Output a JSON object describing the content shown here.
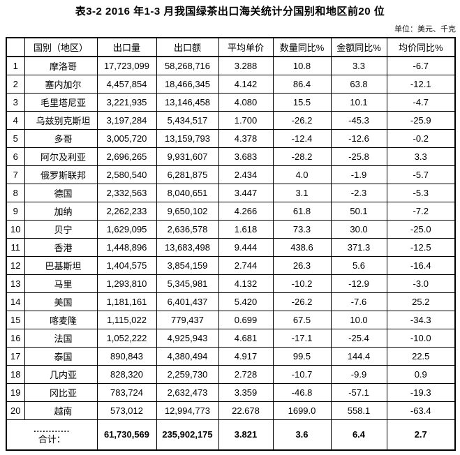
{
  "page": {
    "title": "表3-2 2016 年1-3 月我国绿茶出口海关统计分国别和地区前20 位",
    "unit_note": "单位：美元、千克"
  },
  "table": {
    "headers": {
      "rank": "",
      "country": "国别（地区）",
      "volume": "出口量",
      "value": "出口额",
      "price": "平均单价",
      "volume_yoy": "数量同比%",
      "value_yoy": "金额同比%",
      "price_yoy": "均价同比%"
    },
    "rows": [
      {
        "rank": "1",
        "country": "摩洛哥",
        "volume": "17,723,099",
        "value": "58,268,716",
        "price": "3.288",
        "volume_yoy": "10.8",
        "value_yoy": "3.3",
        "price_yoy": "-6.7"
      },
      {
        "rank": "2",
        "country": "塞内加尔",
        "volume": "4,457,854",
        "value": "18,466,345",
        "price": "4.142",
        "volume_yoy": "86.4",
        "value_yoy": "63.8",
        "price_yoy": "-12.1"
      },
      {
        "rank": "3",
        "country": "毛里塔尼亚",
        "volume": "3,221,935",
        "value": "13,146,458",
        "price": "4.080",
        "volume_yoy": "15.5",
        "value_yoy": "10.1",
        "price_yoy": "-4.7"
      },
      {
        "rank": "4",
        "country": "乌兹别克斯坦",
        "volume": "3,197,284",
        "value": "5,434,517",
        "price": "1.700",
        "volume_yoy": "-26.2",
        "value_yoy": "-45.3",
        "price_yoy": "-25.9"
      },
      {
        "rank": "5",
        "country": "多哥",
        "volume": "3,005,720",
        "value": "13,159,793",
        "price": "4.378",
        "volume_yoy": "-12.4",
        "value_yoy": "-12.6",
        "price_yoy": "-0.2"
      },
      {
        "rank": "6",
        "country": "阿尔及利亚",
        "volume": "2,696,265",
        "value": "9,931,607",
        "price": "3.683",
        "volume_yoy": "-28.2",
        "value_yoy": "-25.8",
        "price_yoy": "3.3"
      },
      {
        "rank": "7",
        "country": "俄罗斯联邦",
        "volume": "2,580,540",
        "value": "6,281,875",
        "price": "2.434",
        "volume_yoy": "4.0",
        "value_yoy": "-1.9",
        "price_yoy": "-5.7"
      },
      {
        "rank": "8",
        "country": "德国",
        "volume": "2,332,563",
        "value": "8,040,651",
        "price": "3.447",
        "volume_yoy": "3.1",
        "value_yoy": "-2.3",
        "price_yoy": "-5.3"
      },
      {
        "rank": "9",
        "country": "加纳",
        "volume": "2,262,233",
        "value": "9,650,102",
        "price": "4.266",
        "volume_yoy": "61.8",
        "value_yoy": "50.1",
        "price_yoy": "-7.2"
      },
      {
        "rank": "10",
        "country": "贝宁",
        "volume": "1,629,095",
        "value": "2,636,578",
        "price": "1.618",
        "volume_yoy": "73.3",
        "value_yoy": "30.0",
        "price_yoy": "-25.0"
      },
      {
        "rank": "11",
        "country": "香港",
        "volume": "1,448,896",
        "value": "13,683,498",
        "price": "9.444",
        "volume_yoy": "438.6",
        "value_yoy": "371.3",
        "price_yoy": "-12.5"
      },
      {
        "rank": "12",
        "country": "巴基斯坦",
        "volume": "1,404,575",
        "value": "3,854,159",
        "price": "2.744",
        "volume_yoy": "26.3",
        "value_yoy": "5.6",
        "price_yoy": "-16.4"
      },
      {
        "rank": "13",
        "country": "马里",
        "volume": "1,293,810",
        "value": "5,345,981",
        "price": "4.132",
        "volume_yoy": "-10.2",
        "value_yoy": "-12.9",
        "price_yoy": "-3.0"
      },
      {
        "rank": "14",
        "country": "美国",
        "volume": "1,181,161",
        "value": "6,401,437",
        "price": "5.420",
        "volume_yoy": "-26.2",
        "value_yoy": "-7.6",
        "price_yoy": "25.2"
      },
      {
        "rank": "15",
        "country": "喀麦隆",
        "volume": "1,115,022",
        "value": "779,437",
        "price": "0.699",
        "volume_yoy": "67.5",
        "value_yoy": "10.0",
        "price_yoy": "-34.3"
      },
      {
        "rank": "16",
        "country": "法国",
        "volume": "1,052,222",
        "value": "4,925,943",
        "price": "4.681",
        "volume_yoy": "-17.1",
        "value_yoy": "-25.4",
        "price_yoy": "-10.0"
      },
      {
        "rank": "17",
        "country": "泰国",
        "volume": "890,843",
        "value": "4,380,494",
        "price": "4.917",
        "volume_yoy": "99.5",
        "value_yoy": "144.4",
        "price_yoy": "22.5"
      },
      {
        "rank": "18",
        "country": "几内亚",
        "volume": "828,320",
        "value": "2,259,730",
        "price": "2.728",
        "volume_yoy": "-10.7",
        "value_yoy": "-9.9",
        "price_yoy": "0.9"
      },
      {
        "rank": "19",
        "country": "冈比亚",
        "volume": "783,724",
        "value": "2,632,473",
        "price": "3.359",
        "volume_yoy": "-46.8",
        "value_yoy": "-57.1",
        "price_yoy": "-19.3"
      },
      {
        "rank": "20",
        "country": "越南",
        "volume": "573,012",
        "value": "12,994,773",
        "price": "22.678",
        "volume_yoy": "1699.0",
        "value_yoy": "558.1",
        "price_yoy": "-63.4"
      }
    ],
    "total": {
      "dots": "............",
      "label": "合计：",
      "volume": "61,730,569",
      "value": "235,902,175",
      "price": "3.821",
      "volume_yoy": "3.6",
      "value_yoy": "6.4",
      "price_yoy": "2.7"
    }
  }
}
